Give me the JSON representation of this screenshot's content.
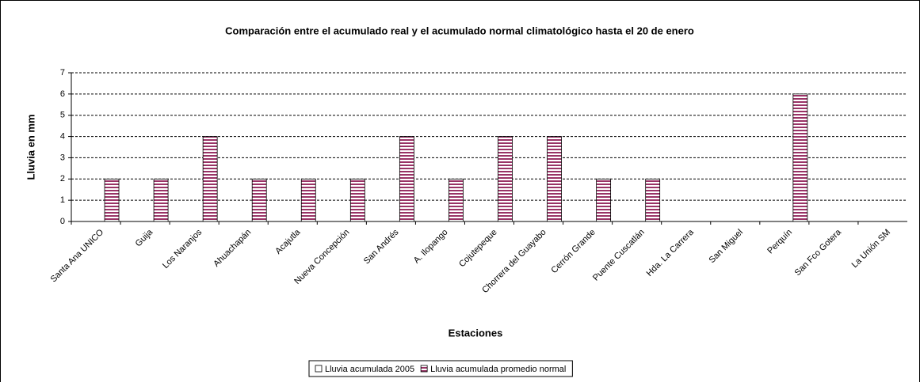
{
  "chart_data": {
    "type": "bar",
    "title": "Comparación entre el acumulado real y el acumulado normal climatológico hasta el 20 de enero",
    "x_label": "Estaciones",
    "y_label": "Lluvia en mm",
    "categories": [
      "Santa Ana UNICO",
      "Guija",
      "Los Naranjos",
      "Ahuachapán",
      "Acajutla",
      "Nueva Concepción",
      "San Andrés",
      "A. Ilopango",
      "Cojutepeque",
      "Chorrera del Guayabo",
      "Cerrón Grande",
      "Puente Cuscatlán",
      "Hda. La Carrera",
      "San Miguel",
      "Perquín",
      "San Fco Gotera",
      "La Unión SM"
    ],
    "series": [
      {
        "name": "Lluvia acumulada 2005",
        "color": "#ffffff",
        "values": [
          0,
          0,
          0,
          0,
          0,
          0,
          0,
          0,
          0,
          0,
          0,
          0,
          0,
          0,
          0,
          0,
          0
        ]
      },
      {
        "name": "Lluvia acumulada promedio normal",
        "color": "#993366",
        "values": [
          2,
          2,
          4,
          2,
          2,
          2,
          4,
          2,
          4,
          4,
          2,
          2,
          0,
          0,
          6,
          0,
          0
        ]
      }
    ],
    "ylim": [
      0,
      7
    ],
    "yticks": [
      0,
      1,
      2,
      3,
      4,
      5,
      6,
      7
    ],
    "grid": true,
    "legend": "bottom"
  }
}
